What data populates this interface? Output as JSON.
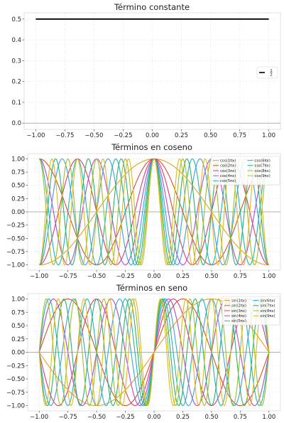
{
  "chart_data": [
    {
      "type": "line",
      "title": "Término constante",
      "xlabel": "",
      "ylabel": "",
      "xlim": [
        -1.1,
        1.1
      ],
      "ylim": [
        -0.03,
        0.53
      ],
      "xticks": [
        -1.0,
        -0.75,
        -0.5,
        -0.25,
        0.0,
        0.25,
        0.5,
        0.75,
        1.0
      ],
      "xtick_labels": [
        "−1.00",
        "−0.75",
        "−0.50",
        "−0.25",
        "0.00",
        "0.25",
        "0.50",
        "0.75",
        "1.00"
      ],
      "yticks": [
        0.0,
        0.1,
        0.2,
        0.3,
        0.4,
        0.5
      ],
      "ytick_labels": [
        "0.0",
        "0.1",
        "0.2",
        "0.3",
        "0.4",
        "0.5"
      ],
      "grid": true,
      "legend_position": "center-right",
      "legend_columns": 1,
      "series": [
        {
          "name": "1/2",
          "kind": "constant",
          "value": 0.5,
          "x": [
            -1,
            1
          ],
          "color": "#000000"
        }
      ]
    },
    {
      "type": "line",
      "title": "Términos en coseno",
      "xlabel": "",
      "ylabel": "",
      "xlim": [
        -1.1,
        1.1
      ],
      "ylim": [
        -1.1,
        1.1
      ],
      "xticks": [
        -1.0,
        -0.75,
        -0.5,
        -0.25,
        0.0,
        0.25,
        0.5,
        0.75,
        1.0
      ],
      "xtick_labels": [
        "−1.00",
        "−0.75",
        "−0.50",
        "−0.25",
        "0.00",
        "0.25",
        "0.50",
        "0.75",
        "1.00"
      ],
      "yticks": [
        1.0,
        0.75,
        0.5,
        0.25,
        0.0,
        -0.25,
        -0.5,
        -0.75,
        -1.0
      ],
      "ytick_labels": [
        "1.00",
        "0.75",
        "0.50",
        "0.25",
        "0.00",
        "−0.25",
        "−0.50",
        "−0.75",
        "−1.00"
      ],
      "grid": true,
      "legend_position": "top-right",
      "legend_columns": 2,
      "series": [
        {
          "name": "cos(1πx)",
          "kind": "cos",
          "n": 1,
          "x": [
            -1,
            1
          ],
          "color": "#e5a01a"
        },
        {
          "name": "cos(2πx)",
          "kind": "cos",
          "n": 2,
          "x": [
            -1,
            1
          ],
          "color": "#d4502c"
        },
        {
          "name": "cos(3πx)",
          "kind": "cos",
          "n": 3,
          "x": [
            -1,
            1
          ],
          "color": "#d93c6e"
        },
        {
          "name": "cos(4πx)",
          "kind": "cos",
          "n": 4,
          "x": [
            -1,
            1
          ],
          "color": "#b24bc4"
        },
        {
          "name": "cos(5πx)",
          "kind": "cos",
          "n": 5,
          "x": [
            -1,
            1
          ],
          "color": "#3f9ee0"
        },
        {
          "name": "cos(6πx)",
          "kind": "cos",
          "n": 6,
          "x": [
            -1,
            1
          ],
          "color": "#1fb5b0"
        },
        {
          "name": "cos(7πx)",
          "kind": "cos",
          "n": 7,
          "x": [
            -1,
            1
          ],
          "color": "#2bb06a"
        },
        {
          "name": "cos(8πx)",
          "kind": "cos",
          "n": 8,
          "x": [
            -1,
            1
          ],
          "color": "#9bbf2a"
        },
        {
          "name": "cos(9πx)",
          "kind": "cos",
          "n": 9,
          "x": [
            -1,
            1
          ],
          "color": "#e0b820"
        }
      ]
    },
    {
      "type": "line",
      "title": "Términos en seno",
      "xlabel": "",
      "ylabel": "",
      "xlim": [
        -1.1,
        1.1
      ],
      "ylim": [
        -1.1,
        1.1
      ],
      "xticks": [
        -1.0,
        -0.75,
        -0.5,
        -0.25,
        0.0,
        0.25,
        0.5,
        0.75,
        1.0
      ],
      "xtick_labels": [
        "−1.00",
        "−0.75",
        "−0.50",
        "−0.25",
        "0.00",
        "0.25",
        "0.50",
        "0.75",
        "1.00"
      ],
      "yticks": [
        1.0,
        0.75,
        0.5,
        0.25,
        0.0,
        -0.25,
        -0.5,
        -0.75,
        -1.0
      ],
      "ytick_labels": [
        "1.00",
        "0.75",
        "0.50",
        "0.25",
        "0.00",
        "−0.25",
        "−0.50",
        "−0.75",
        "−1.00"
      ],
      "grid": true,
      "legend_position": "top-right",
      "legend_columns": 2,
      "series": [
        {
          "name": "sin(1πx)",
          "kind": "sin",
          "n": 1,
          "x": [
            -1,
            1
          ],
          "color": "#e5a01a"
        },
        {
          "name": "sin(2πx)",
          "kind": "sin",
          "n": 2,
          "x": [
            -1,
            1
          ],
          "color": "#d4502c"
        },
        {
          "name": "sin(3πx)",
          "kind": "sin",
          "n": 3,
          "x": [
            -1,
            1
          ],
          "color": "#d93c6e"
        },
        {
          "name": "sin(4πx)",
          "kind": "sin",
          "n": 4,
          "x": [
            -1,
            1
          ],
          "color": "#b24bc4"
        },
        {
          "name": "sin(5πx)",
          "kind": "sin",
          "n": 5,
          "x": [
            -1,
            1
          ],
          "color": "#3f9ee0"
        },
        {
          "name": "sin(6πx)",
          "kind": "sin",
          "n": 6,
          "x": [
            -1,
            1
          ],
          "color": "#1fb5b0"
        },
        {
          "name": "sin(7πx)",
          "kind": "sin",
          "n": 7,
          "x": [
            -1,
            1
          ],
          "color": "#2bb06a"
        },
        {
          "name": "sin(8πx)",
          "kind": "sin",
          "n": 8,
          "x": [
            -1,
            1
          ],
          "color": "#9bbf2a"
        },
        {
          "name": "sin(9πx)",
          "kind": "sin",
          "n": 9,
          "x": [
            -1,
            1
          ],
          "color": "#e0b820"
        }
      ]
    }
  ]
}
